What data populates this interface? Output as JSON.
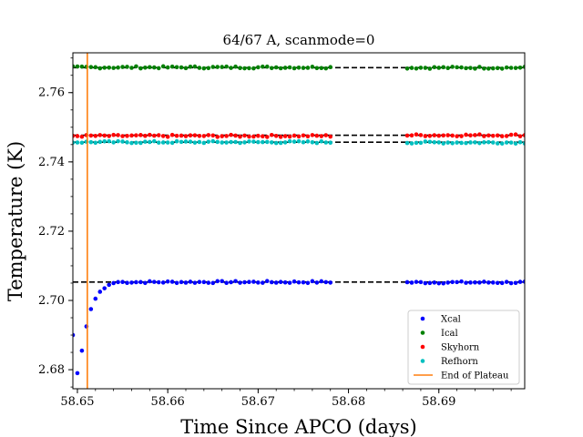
{
  "chart_data": {
    "type": "scatter",
    "title": "64/67 A, scanmode=0",
    "xlabel": "Time Since APCO (days)",
    "ylabel": "Temperature (K)",
    "xlim": [
      58.6495,
      58.6995
    ],
    "ylim": [
      2.6745,
      2.7715
    ],
    "xticks": [
      58.65,
      58.66,
      58.67,
      58.68,
      58.69
    ],
    "xtick_labels": [
      "58.65",
      "58.66",
      "58.67",
      "58.68",
      "58.69"
    ],
    "yticks": [
      2.68,
      2.7,
      2.72,
      2.74,
      2.76
    ],
    "ytick_labels": [
      "2.68",
      "2.70",
      "2.72",
      "2.74",
      "2.76"
    ],
    "legend_position": "lower right",
    "grid": false,
    "series": [
      {
        "name": "Xcal",
        "color": "#0000ff",
        "segments": [
          {
            "x_start": 58.6495,
            "x_end": 58.678,
            "step": 0.0005,
            "transient": [
              2.69,
              2.679,
              2.6855,
              2.6925,
              2.6975,
              2.7005,
              2.7025,
              2.7035,
              2.7045,
              2.705
            ],
            "baseline": 2.7053
          },
          {
            "x_start": 58.6865,
            "x_end": 58.6995,
            "step": 0.0005,
            "baseline": 2.7052
          }
        ]
      },
      {
        "name": "Ical",
        "color": "#008000",
        "segments": [
          {
            "x_start": 58.6495,
            "x_end": 58.678,
            "step": 0.0005,
            "baseline": 2.7673
          },
          {
            "x_start": 58.6865,
            "x_end": 58.6995,
            "step": 0.0005,
            "baseline": 2.7672
          }
        ]
      },
      {
        "name": "Skyhorn",
        "color": "#ff0000",
        "segments": [
          {
            "x_start": 58.6495,
            "x_end": 58.678,
            "step": 0.0005,
            "baseline": 2.7475
          },
          {
            "x_start": 58.6865,
            "x_end": 58.6995,
            "step": 0.0005,
            "baseline": 2.7477
          }
        ]
      },
      {
        "name": "Refhorn",
        "color": "#00bfbf",
        "segments": [
          {
            "x_start": 58.6495,
            "x_end": 58.678,
            "step": 0.0005,
            "baseline": 2.7457
          },
          {
            "x_start": 58.6865,
            "x_end": 58.6995,
            "step": 0.0005,
            "baseline": 2.7456
          }
        ]
      }
    ],
    "reference_lines": [
      {
        "series": "Ical",
        "y": 2.7672,
        "segments": [
          [
            58.6495,
            58.6865
          ],
          [
            58.6865,
            58.6995
          ]
        ]
      },
      {
        "series": "Skyhorn",
        "y": 2.7477,
        "segments": [
          [
            58.6495,
            58.6865
          ],
          [
            58.6865,
            58.6995
          ]
        ]
      },
      {
        "series": "Refhorn",
        "y": 2.7457,
        "segments": [
          [
            58.6495,
            58.6865
          ],
          [
            58.6865,
            58.6995
          ]
        ]
      },
      {
        "series": "Xcal",
        "y": 2.7053,
        "segments": [
          [
            58.6495,
            58.6865
          ],
          [
            58.6865,
            58.6995
          ]
        ]
      }
    ],
    "vertical_line": {
      "name": "End of Plateau",
      "x": 58.6511,
      "color": "#ff7f0e"
    }
  }
}
